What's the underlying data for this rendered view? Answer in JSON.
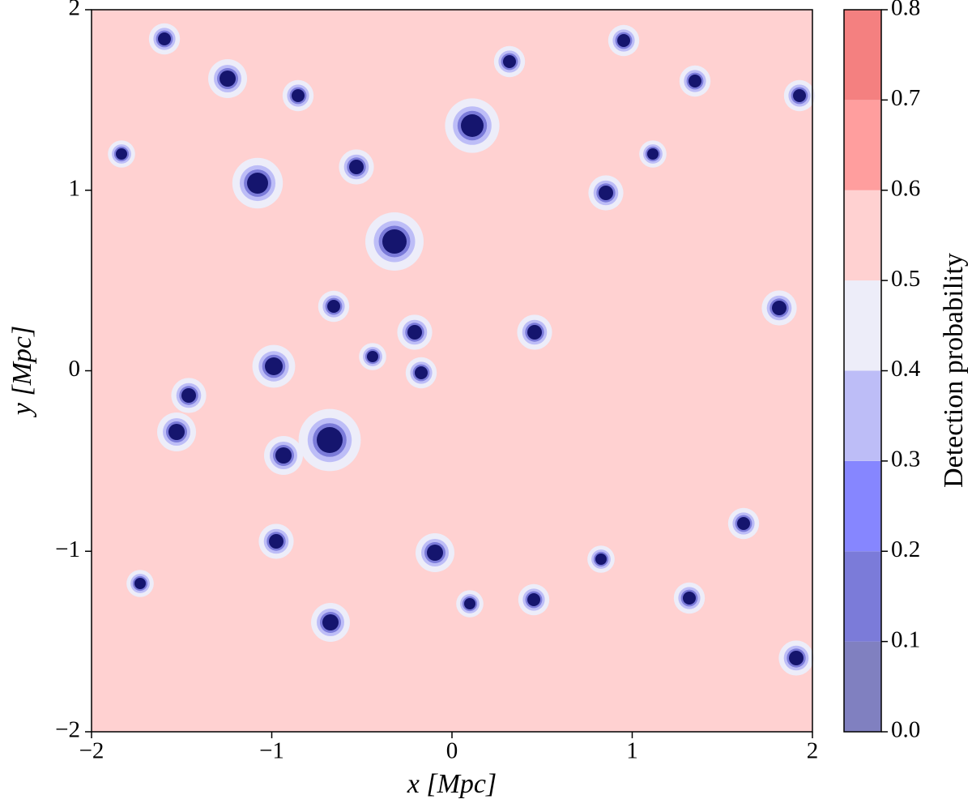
{
  "chart_data": {
    "type": "contourf",
    "xlabel": "x [Mpc]",
    "ylabel": "y [Mpc]",
    "xlim": [
      -2,
      2
    ],
    "ylim": [
      -2,
      2
    ],
    "xticks": [
      {
        "value": -2,
        "label": "−2"
      },
      {
        "value": -1,
        "label": "−1"
      },
      0,
      1,
      2
    ],
    "yticks": [
      {
        "value": -2,
        "label": "−2"
      },
      {
        "value": -1,
        "label": "−1"
      },
      0,
      1,
      2
    ],
    "colorbar": {
      "label": "Detection probability",
      "lim": [
        0,
        0.8
      ],
      "levels": [
        0,
        0.1,
        0.2,
        0.3,
        0.4,
        0.5,
        0.6,
        0.7,
        0.8
      ],
      "colors": [
        "#8080c0",
        "#7b7bd9",
        "#8686ff",
        "#bdbdf7",
        "#ededf9",
        "#ffd1d1",
        "#ff9e9e",
        "#f48080"
      ],
      "ticks": [
        {
          "value": 0,
          "label": "0.0"
        },
        {
          "value": 0.1,
          "label": "0.1"
        },
        {
          "value": 0.2,
          "label": "0.2"
        },
        {
          "value": 0.3,
          "label": "0.3"
        },
        {
          "value": 0.4,
          "label": "0.4"
        },
        {
          "value": 0.5,
          "label": "0.5"
        },
        {
          "value": 0.6,
          "label": "0.6"
        },
        {
          "value": 0.7,
          "label": "0.7"
        },
        {
          "value": 0.8,
          "label": "0.8"
        }
      ]
    }
  }
}
